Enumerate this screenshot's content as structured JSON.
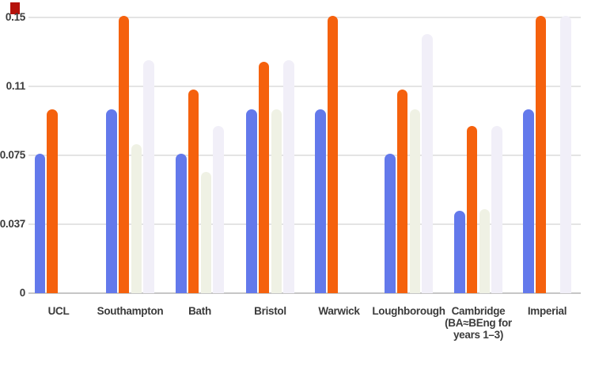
{
  "page": {
    "background": "#ffffff"
  },
  "marker": {
    "name": "red-marker",
    "color": "#b5120b"
  },
  "colors": {
    "gridline": "#e4e4e4",
    "axis_line": "#c6c6c6",
    "label_text": "#3b3b3b"
  },
  "chart_data": {
    "type": "bar",
    "title": "",
    "xlabel": "",
    "ylabel": "",
    "grid": true,
    "legend": "none",
    "ylim": [
      0,
      0.15
    ],
    "y_ticks": [
      {
        "value": 0,
        "label": "0"
      },
      {
        "value": 0.0375,
        "label": "0.037"
      },
      {
        "value": 0.075,
        "label": "0.075"
      },
      {
        "value": 0.1125,
        "label": "0.11"
      },
      {
        "value": 0.15,
        "label": "0.15"
      }
    ],
    "categories": [
      "UCL",
      "Southampton",
      "Bath",
      "Bristol",
      "Warwick",
      "Loughborough",
      "Cambridge\n(BA≈BEng for\nyears 1–3)",
      "Imperial"
    ],
    "series": [
      {
        "name": "series-blue",
        "color": "#6379EB",
        "values": [
          0.075,
          0.099,
          0.075,
          0.099,
          0.099,
          0.075,
          0.044,
          0.099
        ]
      },
      {
        "name": "series-orange",
        "color": "#F5610D",
        "values": [
          0.099,
          0.15,
          0.11,
          0.125,
          0.15,
          0.11,
          0.09,
          0.15
        ]
      },
      {
        "name": "series-pale-green",
        "color": "#EFF1E4",
        "values": [
          null,
          0.08,
          0.065,
          0.099,
          null,
          0.099,
          0.045,
          null
        ]
      },
      {
        "name": "series-pale-lavender",
        "color": "#F1EFF8",
        "values": [
          null,
          0.126,
          0.09,
          0.126,
          null,
          0.14,
          0.09,
          0.15
        ]
      }
    ]
  }
}
